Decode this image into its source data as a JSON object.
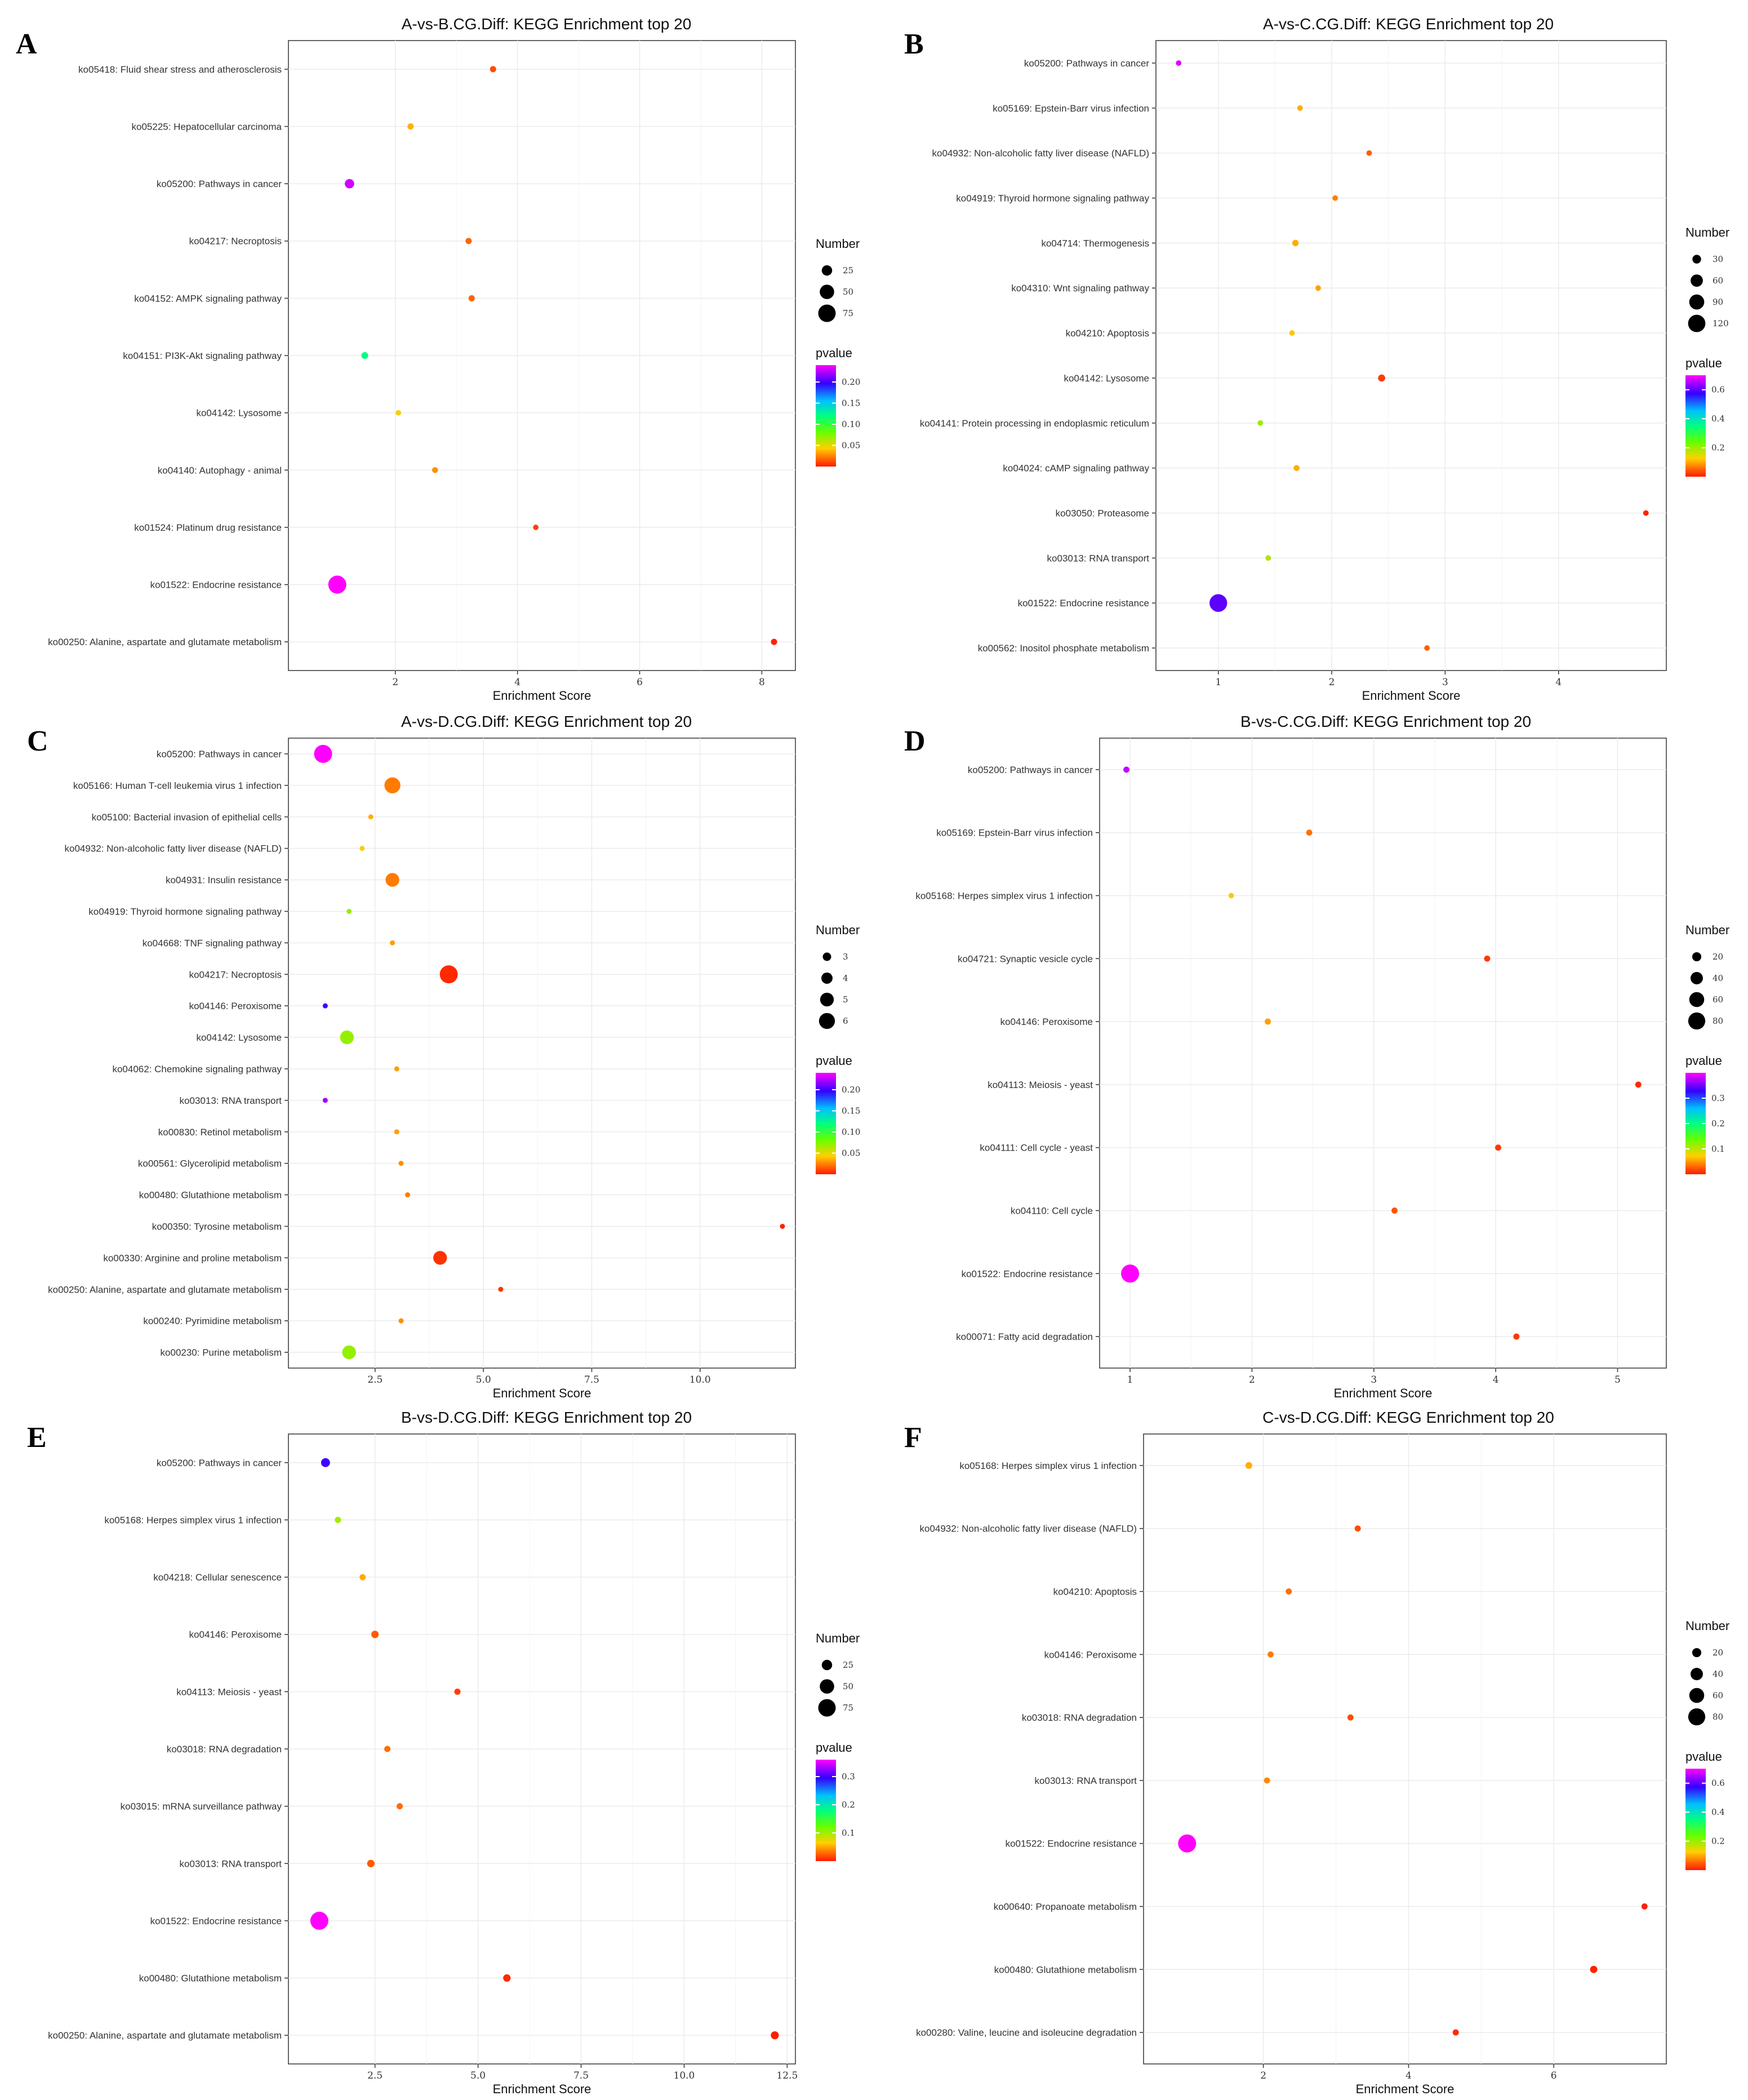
{
  "figure": {
    "legend_size_title": "Number",
    "legend_color_title": "pvalue",
    "colors": {
      "low": "#ff1a00",
      "mid_orange": "#ff8c00",
      "yellow": "#ffe600",
      "green": "#33ff00",
      "cyan": "#00ffff",
      "blue": "#1a33ff",
      "high": "#ff00ff"
    }
  },
  "chart_data": [
    {
      "letter": "A",
      "type": "scatter",
      "title": "A-vs-B.CG.Diff: KEGG Enrichment top 20",
      "xlabel": "Enrichment Score",
      "ylabel": "",
      "xlim": [
        0.25,
        8.55
      ],
      "xticks": [
        {
          "v": 2,
          "label": "2"
        },
        {
          "v": 4,
          "label": "4"
        },
        {
          "v": 6,
          "label": "6"
        },
        {
          "v": 8,
          "label": "8"
        }
      ],
      "pvalue_range": [
        0,
        0.24
      ],
      "size_range": [
        5,
        80
      ],
      "size_legend": [
        {
          "v": 25,
          "label": "25"
        },
        {
          "v": 50,
          "label": "50"
        },
        {
          "v": 75,
          "label": "75"
        }
      ],
      "color_ticks": [
        {
          "v": 0.2,
          "label": "0.20"
        },
        {
          "v": 0.15,
          "label": "0.15"
        },
        {
          "v": 0.1,
          "label": "0.10"
        },
        {
          "v": 0.05,
          "label": "0.05"
        }
      ],
      "points": [
        {
          "term": "ko05418: Fluid shear stress and atherosclerosis",
          "x": 3.6,
          "size": 8,
          "pvalue": 0.01
        },
        {
          "term": "ko05225: Hepatocellular carcinoma",
          "x": 2.25,
          "size": 8,
          "pvalue": 0.035
        },
        {
          "term": "ko05200: Pathways in cancer",
          "x": 1.25,
          "size": 20,
          "pvalue": 0.23
        },
        {
          "term": "ko04217: Necroptosis",
          "x": 3.2,
          "size": 8,
          "pvalue": 0.015
        },
        {
          "term": "ko04152: AMPK signaling pathway",
          "x": 3.25,
          "size": 8,
          "pvalue": 0.015
        },
        {
          "term": "ko04151: PI3K-Akt signaling pathway",
          "x": 1.5,
          "size": 10,
          "pvalue": 0.12
        },
        {
          "term": "ko04142: Lysosome",
          "x": 2.05,
          "size": 6,
          "pvalue": 0.045
        },
        {
          "term": "ko04140: Autophagy - animal",
          "x": 2.65,
          "size": 7,
          "pvalue": 0.025
        },
        {
          "term": "ko01524: Platinum drug resistance",
          "x": 4.3,
          "size": 6,
          "pvalue": 0.008
        },
        {
          "term": "ko01522: Endocrine resistance",
          "x": 1.05,
          "size": 80,
          "pvalue": 0.24
        },
        {
          "term": "ko00250: Alanine, aspartate and glutamate metabolism",
          "x": 8.2,
          "size": 8,
          "pvalue": 0.002
        }
      ]
    },
    {
      "letter": "B",
      "type": "scatter",
      "title": "A-vs-C.CG.Diff: KEGG Enrichment top 20",
      "xlabel": "Enrichment Score",
      "ylabel": "",
      "xlim": [
        0.45,
        4.95
      ],
      "xticks": [
        {
          "v": 1,
          "label": "1"
        },
        {
          "v": 2,
          "label": "2"
        },
        {
          "v": 3,
          "label": "3"
        },
        {
          "v": 4,
          "label": "4"
        }
      ],
      "pvalue_range": [
        0,
        0.7
      ],
      "size_range": [
        10,
        130
      ],
      "size_legend": [
        {
          "v": 30,
          "label": "30"
        },
        {
          "v": 60,
          "label": "60"
        },
        {
          "v": 90,
          "label": "90"
        },
        {
          "v": 120,
          "label": "120"
        }
      ],
      "color_ticks": [
        {
          "v": 0.6,
          "label": "0.6"
        },
        {
          "v": 0.4,
          "label": "0.4"
        },
        {
          "v": 0.2,
          "label": "0.2"
        }
      ],
      "points": [
        {
          "term": "ko05200: Pathways in cancer",
          "x": 0.65,
          "size": 12,
          "pvalue": 0.68
        },
        {
          "term": "ko05169: Epstein-Barr virus infection",
          "x": 1.72,
          "size": 12,
          "pvalue": 0.1
        },
        {
          "term": "ko04932: Non-alcoholic fatty liver disease (NAFLD)",
          "x": 2.33,
          "size": 12,
          "pvalue": 0.04
        },
        {
          "term": "ko04919: Thyroid hormone signaling pathway",
          "x": 2.03,
          "size": 12,
          "pvalue": 0.06
        },
        {
          "term": "ko04714: Thermogenesis",
          "x": 1.68,
          "size": 16,
          "pvalue": 0.1
        },
        {
          "term": "ko04310: Wnt signaling pathway",
          "x": 1.88,
          "size": 12,
          "pvalue": 0.09
        },
        {
          "term": "ko04210: Apoptosis",
          "x": 1.65,
          "size": 12,
          "pvalue": 0.12
        },
        {
          "term": "ko04142: Lysosome",
          "x": 2.44,
          "size": 20,
          "pvalue": 0.02
        },
        {
          "term": "ko04141: Protein processing in endoplasmic reticulum",
          "x": 1.37,
          "size": 12,
          "pvalue": 0.2
        },
        {
          "term": "ko04024: cAMP signaling pathway",
          "x": 1.69,
          "size": 14,
          "pvalue": 0.1
        },
        {
          "term": "ko03050: Proteasome",
          "x": 4.77,
          "size": 12,
          "pvalue": 0.005
        },
        {
          "term": "ko03013: RNA transport",
          "x": 1.44,
          "size": 12,
          "pvalue": 0.18
        },
        {
          "term": "ko01522: Endocrine resistance",
          "x": 1.0,
          "size": 125,
          "pvalue": 0.6
        },
        {
          "term": "ko00562: Inositol phosphate metabolism",
          "x": 2.84,
          "size": 12,
          "pvalue": 0.04
        }
      ]
    },
    {
      "letter": "C",
      "type": "scatter",
      "title": "A-vs-D.CG.Diff: KEGG Enrichment top 20",
      "xlabel": "Enrichment Score",
      "ylabel": "",
      "xlim": [
        0.5,
        12.2
      ],
      "xticks": [
        {
          "v": 2.5,
          "label": "2.5"
        },
        {
          "v": 5,
          "label": "5.0"
        },
        {
          "v": 7.5,
          "label": "7.5"
        },
        {
          "v": 10,
          "label": "10.0"
        }
      ],
      "pvalue_range": [
        0,
        0.24
      ],
      "size_range": [
        2,
        7
      ],
      "size_legend": [
        {
          "v": 3,
          "label": "3"
        },
        {
          "v": 4,
          "label": "4"
        },
        {
          "v": 5,
          "label": "5"
        },
        {
          "v": 6,
          "label": "6"
        }
      ],
      "color_ticks": [
        {
          "v": 0.2,
          "label": "0.20"
        },
        {
          "v": 0.15,
          "label": "0.15"
        },
        {
          "v": 0.1,
          "label": "0.10"
        },
        {
          "v": 0.05,
          "label": "0.05"
        }
      ],
      "points": [
        {
          "term": "ko05200: Pathways in cancer",
          "x": 1.3,
          "size": 7,
          "pvalue": 0.24
        },
        {
          "term": "ko05166: Human T-cell leukemia virus 1 infection",
          "x": 2.9,
          "size": 6,
          "pvalue": 0.02
        },
        {
          "term": "ko05100: Bacterial invasion of epithelial cells",
          "x": 2.4,
          "size": 2,
          "pvalue": 0.035
        },
        {
          "term": "ko04932: Non-alcoholic fatty liver disease (NAFLD)",
          "x": 2.2,
          "size": 2,
          "pvalue": 0.045
        },
        {
          "term": "ko04931: Insulin resistance",
          "x": 2.9,
          "size": 5,
          "pvalue": 0.02
        },
        {
          "term": "ko04919: Thyroid hormone signaling pathway",
          "x": 1.9,
          "size": 2,
          "pvalue": 0.07
        },
        {
          "term": "ko04668: TNF signaling pathway",
          "x": 2.9,
          "size": 2,
          "pvalue": 0.03
        },
        {
          "term": "ko04217: Necroptosis",
          "x": 4.2,
          "size": 7,
          "pvalue": 0.003
        },
        {
          "term": "ko04146: Peroxisome",
          "x": 1.35,
          "size": 2,
          "pvalue": 0.2
        },
        {
          "term": "ko04142: Lysosome",
          "x": 1.85,
          "size": 5,
          "pvalue": 0.07
        },
        {
          "term": "ko04062: Chemokine signaling pathway",
          "x": 3.0,
          "size": 2,
          "pvalue": 0.03
        },
        {
          "term": "ko03013: RNA transport",
          "x": 1.35,
          "size": 2,
          "pvalue": 0.22
        },
        {
          "term": "ko00830: Retinol metabolism",
          "x": 3.0,
          "size": 2,
          "pvalue": 0.03
        },
        {
          "term": "ko00561: Glycerolipid metabolism",
          "x": 3.1,
          "size": 2,
          "pvalue": 0.025
        },
        {
          "term": "ko00480: Glutathione metabolism",
          "x": 3.25,
          "size": 2,
          "pvalue": 0.02
        },
        {
          "term": "ko00350: Tyrosine metabolism",
          "x": 11.9,
          "size": 2,
          "pvalue": 0.001
        },
        {
          "term": "ko00330: Arginine and proline metabolism",
          "x": 4.0,
          "size": 5,
          "pvalue": 0.005
        },
        {
          "term": "ko00250: Alanine, aspartate and glutamate metabolism",
          "x": 5.4,
          "size": 2,
          "pvalue": 0.005
        },
        {
          "term": "ko00240: Pyrimidine metabolism",
          "x": 3.1,
          "size": 2,
          "pvalue": 0.025
        },
        {
          "term": "ko00230: Purine metabolism",
          "x": 1.9,
          "size": 5,
          "pvalue": 0.07
        }
      ]
    },
    {
      "letter": "D",
      "type": "scatter",
      "title": "B-vs-C.CG.Diff: KEGG Enrichment top 20",
      "xlabel": "Enrichment Score",
      "ylabel": "",
      "xlim": [
        0.75,
        5.4
      ],
      "xticks": [
        {
          "v": 1,
          "label": "1"
        },
        {
          "v": 2,
          "label": "2"
        },
        {
          "v": 3,
          "label": "3"
        },
        {
          "v": 4,
          "label": "4"
        },
        {
          "v": 5,
          "label": "5"
        }
      ],
      "pvalue_range": [
        0,
        0.4
      ],
      "size_range": [
        5,
        90
      ],
      "size_legend": [
        {
          "v": 20,
          "label": "20"
        },
        {
          "v": 40,
          "label": "40"
        },
        {
          "v": 60,
          "label": "60"
        },
        {
          "v": 80,
          "label": "80"
        }
      ],
      "color_ticks": [
        {
          "v": 0.3,
          "label": "0.3"
        },
        {
          "v": 0.2,
          "label": "0.2"
        },
        {
          "v": 0.1,
          "label": "0.1"
        }
      ],
      "points": [
        {
          "term": "ko05200: Pathways in cancer",
          "x": 0.97,
          "size": 8,
          "pvalue": 0.38
        },
        {
          "term": "ko05169: Epstein-Barr virus infection",
          "x": 2.47,
          "size": 8,
          "pvalue": 0.03
        },
        {
          "term": "ko05168: Herpes simplex virus 1 infection",
          "x": 1.83,
          "size": 6,
          "pvalue": 0.07
        },
        {
          "term": "ko04721: Synaptic vesicle cycle",
          "x": 3.93,
          "size": 8,
          "pvalue": 0.01
        },
        {
          "term": "ko04146: Peroxisome",
          "x": 2.13,
          "size": 8,
          "pvalue": 0.05
        },
        {
          "term": "ko04113: Meiosis - yeast",
          "x": 5.17,
          "size": 8,
          "pvalue": 0.005
        },
        {
          "term": "ko04111: Cell cycle - yeast",
          "x": 4.02,
          "size": 8,
          "pvalue": 0.01
        },
        {
          "term": "ko04110: Cell cycle",
          "x": 3.17,
          "size": 8,
          "pvalue": 0.02
        },
        {
          "term": "ko01522: Endocrine resistance",
          "x": 1.0,
          "size": 90,
          "pvalue": 0.4
        },
        {
          "term": "ko00071: Fatty acid degradation",
          "x": 4.17,
          "size": 8,
          "pvalue": 0.01
        }
      ]
    },
    {
      "letter": "E",
      "type": "scatter",
      "title": "B-vs-D.CG.Diff: KEGG Enrichment top 20",
      "xlabel": "Enrichment Score",
      "ylabel": "",
      "xlim": [
        0.4,
        12.7
      ],
      "xticks": [
        {
          "v": 2.5,
          "label": "2.5"
        },
        {
          "v": 5,
          "label": "5.0"
        },
        {
          "v": 7.5,
          "label": "7.5"
        },
        {
          "v": 10,
          "label": "10.0"
        },
        {
          "v": 12.5,
          "label": "12.5"
        }
      ],
      "pvalue_range": [
        0,
        0.36
      ],
      "size_range": [
        5,
        80
      ],
      "size_legend": [
        {
          "v": 25,
          "label": "25"
        },
        {
          "v": 50,
          "label": "50"
        },
        {
          "v": 75,
          "label": "75"
        }
      ],
      "color_ticks": [
        {
          "v": 0.3,
          "label": "0.3"
        },
        {
          "v": 0.2,
          "label": "0.2"
        },
        {
          "v": 0.1,
          "label": "0.1"
        }
      ],
      "points": [
        {
          "term": "ko05200: Pathways in cancer",
          "x": 1.3,
          "size": 18,
          "pvalue": 0.3
        },
        {
          "term": "ko05168: Herpes simplex virus 1 infection",
          "x": 1.6,
          "size": 8,
          "pvalue": 0.1
        },
        {
          "term": "ko04218: Cellular senescence",
          "x": 2.2,
          "size": 8,
          "pvalue": 0.05
        },
        {
          "term": "ko04146: Peroxisome",
          "x": 2.5,
          "size": 12,
          "pvalue": 0.02
        },
        {
          "term": "ko04113: Meiosis - yeast",
          "x": 4.5,
          "size": 8,
          "pvalue": 0.01
        },
        {
          "term": "ko03018: RNA degradation",
          "x": 2.8,
          "size": 8,
          "pvalue": 0.025
        },
        {
          "term": "ko03015: mRNA surveillance pathway",
          "x": 3.1,
          "size": 8,
          "pvalue": 0.025
        },
        {
          "term": "ko03013: RNA transport",
          "x": 2.4,
          "size": 12,
          "pvalue": 0.02
        },
        {
          "term": "ko01522: Endocrine resistance",
          "x": 1.15,
          "size": 80,
          "pvalue": 0.36
        },
        {
          "term": "ko00480: Glutathione metabolism",
          "x": 5.7,
          "size": 12,
          "pvalue": 0.005
        },
        {
          "term": "ko00250: Alanine, aspartate and glutamate metabolism",
          "x": 12.2,
          "size": 14,
          "pvalue": 0.001
        }
      ]
    },
    {
      "letter": "F",
      "type": "scatter",
      "title": "C-vs-D.CG.Diff: KEGG Enrichment top 20",
      "xlabel": "Enrichment Score",
      "ylabel": "",
      "xlim": [
        0.35,
        7.55
      ],
      "xticks": [
        {
          "v": 2,
          "label": "2"
        },
        {
          "v": 4,
          "label": "4"
        },
        {
          "v": 6,
          "label": "6"
        }
      ],
      "pvalue_range": [
        0,
        0.7
      ],
      "size_range": [
        5,
        90
      ],
      "size_legend": [
        {
          "v": 20,
          "label": "20"
        },
        {
          "v": 40,
          "label": "40"
        },
        {
          "v": 60,
          "label": "60"
        },
        {
          "v": 80,
          "label": "80"
        }
      ],
      "color_ticks": [
        {
          "v": 0.6,
          "label": "0.6"
        },
        {
          "v": 0.4,
          "label": "0.4"
        },
        {
          "v": 0.2,
          "label": "0.2"
        }
      ],
      "points": [
        {
          "term": "ko05168: Herpes simplex virus 1 infection",
          "x": 1.8,
          "size": 10,
          "pvalue": 0.1
        },
        {
          "term": "ko04932: Non-alcoholic fatty liver disease (NAFLD)",
          "x": 3.3,
          "size": 8,
          "pvalue": 0.03
        },
        {
          "term": "ko04210: Apoptosis",
          "x": 2.35,
          "size": 8,
          "pvalue": 0.05
        },
        {
          "term": "ko04146: Peroxisome",
          "x": 2.1,
          "size": 8,
          "pvalue": 0.06
        },
        {
          "term": "ko03018: RNA degradation",
          "x": 3.2,
          "size": 8,
          "pvalue": 0.03
        },
        {
          "term": "ko03013: RNA transport",
          "x": 2.05,
          "size": 8,
          "pvalue": 0.07
        },
        {
          "term": "ko01522: Endocrine resistance",
          "x": 0.95,
          "size": 90,
          "pvalue": 0.7
        },
        {
          "term": "ko00640: Propanoate metabolism",
          "x": 7.25,
          "size": 8,
          "pvalue": 0.005
        },
        {
          "term": "ko00480: Glutathione metabolism",
          "x": 6.55,
          "size": 12,
          "pvalue": 0.005
        },
        {
          "term": "ko00280: Valine, leucine and isoleucine degradation",
          "x": 4.65,
          "size": 8,
          "pvalue": 0.01
        }
      ]
    }
  ]
}
